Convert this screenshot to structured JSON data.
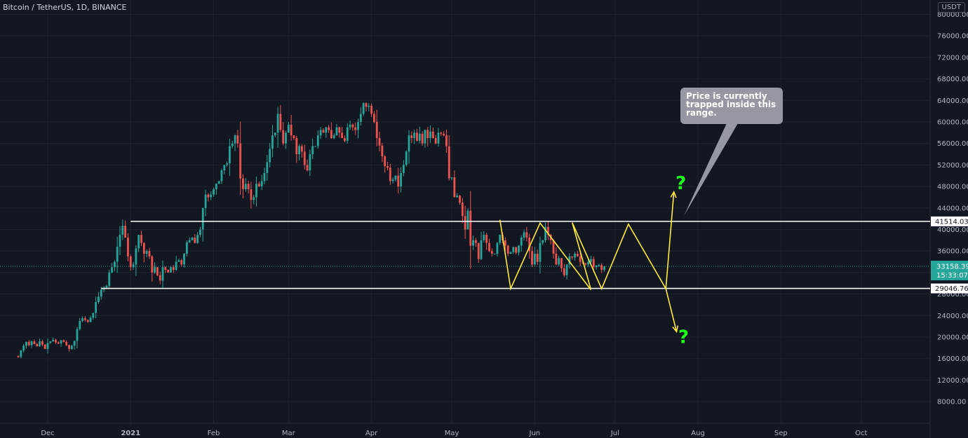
{
  "chart_data": {
    "type": "candlestick",
    "title": "Bitcoin / TetherUS, 1D, BINANCE",
    "currency": "USDT",
    "ylim": [
      4000,
      82000
    ],
    "y_ticks": [
      "80000.00",
      "76000.00",
      "72000.00",
      "68000.00",
      "64000.00",
      "60000.00",
      "56000.00",
      "52000.00",
      "48000.00",
      "44000.00",
      "40000.00",
      "36000.00",
      "32000.00",
      "28000.00",
      "24000.00",
      "20000.00",
      "16000.00",
      "12000.00",
      "8000.00"
    ],
    "x_ticks": [
      {
        "label": "Dec",
        "date": "2020-12-01"
      },
      {
        "label": "2021",
        "date": "2021-01-01"
      },
      {
        "label": "Feb",
        "date": "2021-02-01"
      },
      {
        "label": "Mar",
        "date": "2021-03-01"
      },
      {
        "label": "Apr",
        "date": "2021-04-01"
      },
      {
        "label": "May",
        "date": "2021-05-01"
      },
      {
        "label": "Jun",
        "date": "2021-06-01"
      },
      {
        "label": "Jul",
        "date": "2021-07-01"
      },
      {
        "label": "Aug",
        "date": "2021-08-01"
      },
      {
        "label": "Sep",
        "date": "2021-09-01"
      },
      {
        "label": "Oct",
        "date": "2021-10-01"
      }
    ],
    "first_date": "2020-11-19",
    "price_path": [
      16500,
      16300,
      17500,
      18400,
      19100,
      18500,
      19200,
      18700,
      18300,
      19200,
      18600,
      17800,
      18900,
      19200,
      19500,
      19000,
      18800,
      19400,
      19100,
      18500,
      17800,
      18400,
      19300,
      21500,
      23000,
      23500,
      23200,
      22800,
      23600,
      24500,
      26500,
      27500,
      28800,
      29200,
      29500,
      32000,
      33000,
      34000,
      36800,
      39000,
      40700,
      38500,
      35000,
      33000,
      33500,
      36500,
      39000,
      37500,
      35500,
      36000,
      35000,
      32000,
      33000,
      31500,
      30500,
      33000,
      32500,
      32000,
      33000,
      32500,
      34000,
      34300,
      33500,
      35500,
      37600,
      38000,
      38500,
      37500,
      39000,
      40000,
      44000,
      46500,
      46000,
      46500,
      47500,
      48500,
      49000,
      51000,
      52000,
      52300,
      55500,
      56000,
      57500,
      56000,
      49500,
      47500,
      48500,
      47500,
      45500,
      46000,
      48500,
      48000,
      49000,
      50500,
      52500,
      55000,
      57500,
      58000,
      61500,
      58500,
      56000,
      58000,
      59500,
      57500,
      57000,
      54000,
      55500,
      54500,
      52000,
      51000,
      54000,
      55500,
      55500,
      57500,
      58500,
      58000,
      59000,
      58500,
      57000,
      57500,
      59000,
      58000,
      57000,
      56500,
      59000,
      59500,
      59000,
      58500,
      60000,
      61500,
      63500,
      62800,
      63000,
      61500,
      60000,
      57000,
      55600,
      53600,
      51800,
      51500,
      49000,
      49300,
      50000,
      48000,
      50500,
      52000,
      54500,
      57500,
      57000,
      58000,
      56500,
      57800,
      56000,
      58500,
      57000,
      58200,
      57000,
      56000,
      58000,
      57800,
      57500,
      55500,
      49500,
      49700,
      46000,
      46300,
      45000,
      42500,
      40000,
      43500,
      37000,
      38000,
      37500,
      34500,
      38000,
      39000,
      37500,
      36000,
      35500,
      35500,
      37500,
      39000,
      38000,
      37000,
      35500,
      35800,
      36700,
      35700,
      37000,
      38500,
      39500,
      38500,
      36000,
      33500,
      35500,
      34000,
      37500,
      38000,
      40500,
      39000,
      38000,
      35500,
      33500,
      34700,
      32800,
      31500,
      33500,
      35000,
      34800,
      35500,
      35000,
      34000,
      33700,
      33500,
      34000,
      34500,
      33000,
      33300,
      33400,
      32500,
      33158
    ],
    "current_price": "33158.39",
    "countdown": "15:33:07",
    "levels": [
      {
        "label": "41514.03",
        "value": 41514.03
      },
      {
        "label": "29046.76",
        "value": 29046.76
      }
    ],
    "zigzag": [
      {
        "date": "2021-05-19",
        "value": 41800
      },
      {
        "date": "2021-05-23",
        "value": 29000
      },
      {
        "date": "2021-06-03",
        "value": 41200
      },
      {
        "date": "2021-06-22",
        "value": 28800
      },
      {
        "date": "2021-06-15",
        "value": 41300
      },
      {
        "date": "2021-06-26",
        "value": 29000
      },
      {
        "date": "2021-07-06",
        "value": 41000
      },
      {
        "date": "2021-07-20",
        "value": 29000
      }
    ],
    "scenario_up": [
      {
        "date": "2021-07-20",
        "value": 29000
      },
      {
        "date": "2021-07-23",
        "value": 47000
      }
    ],
    "scenario_down": [
      {
        "date": "2021-07-20",
        "value": 29000
      },
      {
        "date": "2021-07-24",
        "value": 21000
      }
    ],
    "question_marks": [
      "?",
      "?"
    ],
    "callout_text": "Price is currently trapped inside this range."
  }
}
